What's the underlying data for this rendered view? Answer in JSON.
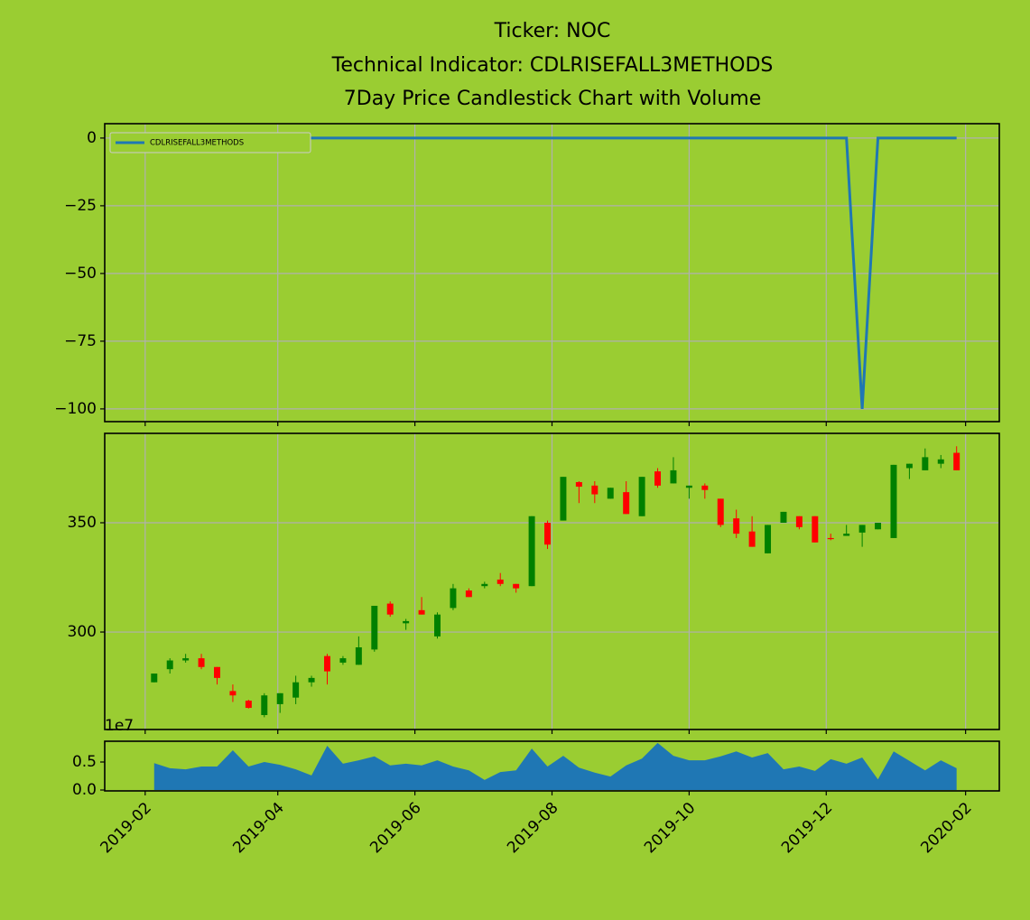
{
  "chart_data": [
    {
      "type": "line",
      "title": [
        "Ticker: NOC",
        "Technical Indicator: CDLRISEFALL3METHODS",
        "7Day Price Candlestick Chart with Volume"
      ],
      "x": [
        "2019-02-05",
        "2019-02-12",
        "2019-02-19",
        "2019-02-26",
        "2019-03-05",
        "2019-03-12",
        "2019-03-19",
        "2019-03-26",
        "2019-04-02",
        "2019-04-09",
        "2019-04-16",
        "2019-04-23",
        "2019-04-30",
        "2019-05-07",
        "2019-05-14",
        "2019-05-21",
        "2019-05-28",
        "2019-06-04",
        "2019-06-11",
        "2019-06-18",
        "2019-06-25",
        "2019-07-02",
        "2019-07-09",
        "2019-07-16",
        "2019-07-23",
        "2019-07-30",
        "2019-08-06",
        "2019-08-13",
        "2019-08-20",
        "2019-08-27",
        "2019-09-03",
        "2019-09-10",
        "2019-09-17",
        "2019-09-24",
        "2019-10-01",
        "2019-10-08",
        "2019-10-15",
        "2019-10-22",
        "2019-10-29",
        "2019-11-05",
        "2019-11-12",
        "2019-11-19",
        "2019-11-26",
        "2019-12-03",
        "2019-12-10",
        "2019-12-17",
        "2019-12-24",
        "2019-12-31",
        "2020-01-07",
        "2020-01-14",
        "2020-01-21",
        "2020-01-28"
      ],
      "series": [
        {
          "name": "CDLRISEFALL3METHODS",
          "color": "#1f77b4",
          "values": [
            0,
            0,
            0,
            0,
            0,
            0,
            0,
            0,
            0,
            0,
            0,
            0,
            0,
            0,
            0,
            0,
            0,
            0,
            0,
            0,
            0,
            0,
            0,
            0,
            0,
            0,
            0,
            0,
            0,
            0,
            0,
            0,
            0,
            0,
            0,
            0,
            0,
            0,
            0,
            0,
            0,
            0,
            0,
            0,
            0,
            -100,
            0,
            0,
            0,
            0,
            0,
            0
          ]
        }
      ],
      "ylim": [
        -104.7,
        5.3
      ],
      "yticks": [
        0,
        {
          "value": -25,
          "label": "−25"
        },
        {
          "value": -50,
          "label": "−50"
        },
        {
          "value": -75,
          "label": "−75"
        },
        {
          "value": -100,
          "label": "−100"
        }
      ],
      "grid": true,
      "legend": "upper left"
    },
    {
      "type": "candlestick",
      "x": [
        "2019-02-05",
        "2019-02-12",
        "2019-02-19",
        "2019-02-26",
        "2019-03-05",
        "2019-03-12",
        "2019-03-19",
        "2019-03-26",
        "2019-04-02",
        "2019-04-09",
        "2019-04-16",
        "2019-04-23",
        "2019-04-30",
        "2019-05-07",
        "2019-05-14",
        "2019-05-21",
        "2019-05-28",
        "2019-06-04",
        "2019-06-11",
        "2019-06-18",
        "2019-06-25",
        "2019-07-02",
        "2019-07-09",
        "2019-07-16",
        "2019-07-23",
        "2019-07-30",
        "2019-08-06",
        "2019-08-13",
        "2019-08-20",
        "2019-08-27",
        "2019-09-03",
        "2019-09-10",
        "2019-09-17",
        "2019-09-24",
        "2019-10-01",
        "2019-10-08",
        "2019-10-15",
        "2019-10-22",
        "2019-10-29",
        "2019-11-05",
        "2019-11-12",
        "2019-11-19",
        "2019-11-26",
        "2019-12-03",
        "2019-12-10",
        "2019-12-17",
        "2019-12-24",
        "2019-12-31",
        "2020-01-07",
        "2020-01-14",
        "2020-01-21",
        "2020-01-28"
      ],
      "open": [
        277,
        283,
        287,
        288,
        284,
        273,
        268.6,
        262,
        267,
        270,
        277,
        289,
        286,
        285,
        292,
        313,
        304,
        310,
        298,
        311,
        319,
        321,
        324,
        322,
        321,
        350,
        351,
        368.6,
        367,
        361,
        364,
        353,
        373.5,
        368,
        366,
        367,
        361,
        352,
        346,
        336,
        350,
        353,
        353,
        343,
        344,
        345.5,
        347,
        343,
        375,
        374,
        377,
        382
      ],
      "high": [
        281,
        288,
        290,
        290,
        284,
        276,
        269,
        272,
        272,
        280,
        280,
        290,
        289,
        298,
        312,
        314,
        306,
        316,
        309,
        322,
        320,
        323,
        327,
        322,
        353,
        351,
        371,
        369,
        369,
        366,
        369,
        371,
        375,
        380,
        367,
        368,
        361,
        356,
        353,
        349,
        355,
        353,
        353,
        345,
        349,
        349,
        350,
        376.5,
        377,
        384,
        381,
        385
      ],
      "low": [
        277,
        281,
        286,
        283,
        276,
        268,
        265,
        261,
        263,
        267,
        275,
        276,
        285,
        285,
        291,
        307,
        301,
        308,
        297,
        310,
        316,
        320,
        321,
        318,
        321,
        338,
        351,
        359,
        359,
        361,
        354,
        353,
        366,
        368,
        361,
        361,
        348,
        343,
        339,
        336,
        350,
        347,
        341,
        342,
        344,
        339,
        347,
        343,
        370,
        374,
        375,
        374
      ],
      "close": [
        281,
        287,
        288,
        284,
        279,
        271,
        265.3,
        271,
        272,
        277,
        279,
        282,
        288,
        293,
        312,
        308,
        305,
        308,
        308,
        320,
        316,
        322,
        322,
        320,
        353,
        340,
        371,
        366.5,
        363,
        366,
        354,
        371,
        367,
        374,
        367,
        365,
        349,
        345,
        339,
        349,
        355,
        348,
        341,
        342.5,
        345,
        349,
        350,
        376.5,
        377,
        380,
        379,
        374
      ],
      "up_color": "#008000",
      "down_color": "#ff0000",
      "ylim": [
        255.4,
        390.9
      ],
      "yticks": [
        300,
        350
      ],
      "grid": true
    },
    {
      "type": "area",
      "x": [
        "2019-02-05",
        "2019-02-12",
        "2019-02-19",
        "2019-02-26",
        "2019-03-05",
        "2019-03-12",
        "2019-03-19",
        "2019-03-26",
        "2019-04-02",
        "2019-04-09",
        "2019-04-16",
        "2019-04-23",
        "2019-04-30",
        "2019-05-07",
        "2019-05-14",
        "2019-05-21",
        "2019-05-28",
        "2019-06-04",
        "2019-06-11",
        "2019-06-18",
        "2019-06-25",
        "2019-07-02",
        "2019-07-09",
        "2019-07-16",
        "2019-07-23",
        "2019-07-30",
        "2019-08-06",
        "2019-08-13",
        "2019-08-20",
        "2019-08-27",
        "2019-09-03",
        "2019-09-10",
        "2019-09-17",
        "2019-09-24",
        "2019-10-01",
        "2019-10-08",
        "2019-10-15",
        "2019-10-22",
        "2019-10-29",
        "2019-11-05",
        "2019-11-12",
        "2019-11-19",
        "2019-11-26",
        "2019-12-03",
        "2019-12-10",
        "2019-12-17",
        "2019-12-24",
        "2019-12-31",
        "2020-01-07",
        "2020-01-14",
        "2020-01-21",
        "2020-01-28"
      ],
      "values": [
        0.48,
        0.39,
        0.37,
        0.42,
        0.42,
        0.71,
        0.42,
        0.5,
        0.45,
        0.37,
        0.26,
        0.79,
        0.47,
        0.53,
        0.6,
        0.44,
        0.47,
        0.44,
        0.53,
        0.42,
        0.35,
        0.18,
        0.32,
        0.35,
        0.74,
        0.42,
        0.61,
        0.4,
        0.31,
        0.24,
        0.44,
        0.56,
        0.84,
        0.61,
        0.53,
        0.53,
        0.6,
        0.69,
        0.58,
        0.66,
        0.37,
        0.42,
        0.34,
        0.55,
        0.47,
        0.58,
        0.19,
        0.69,
        0.52,
        0.35,
        0.53,
        0.39
      ],
      "color": "#1f77b4",
      "offset_label": "1e7",
      "ylim": [
        -0.016,
        0.871
      ],
      "yticks": [
        {
          "value": 0,
          "label": "0.0"
        },
        0.5
      ],
      "xlim": [
        "2019-01-14",
        "2020-02-16"
      ],
      "xticks": [
        "2019-02",
        "2019-04",
        "2019-06",
        "2019-08",
        "2019-10",
        "2019-12",
        "2020-02"
      ]
    }
  ]
}
